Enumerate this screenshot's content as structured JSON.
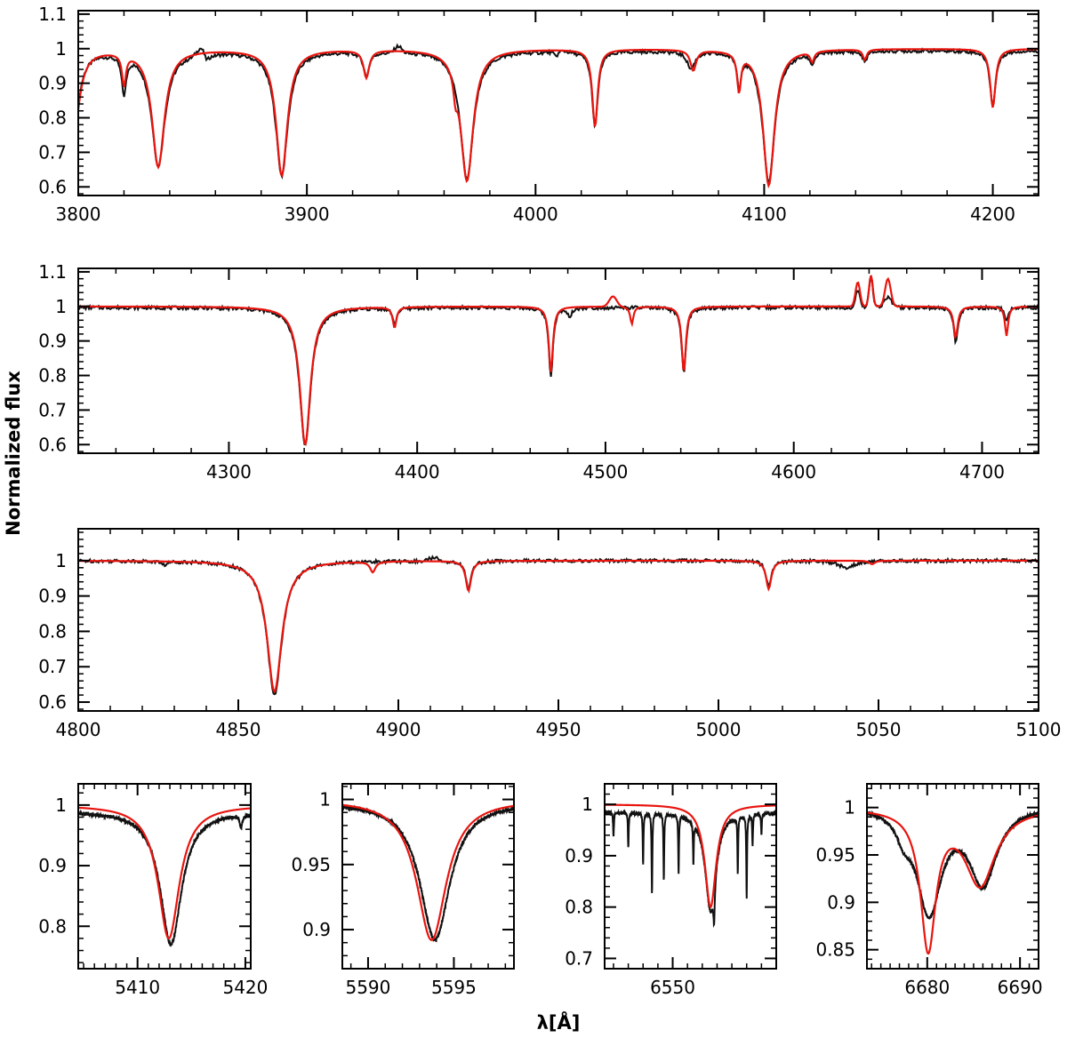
{
  "figure": {
    "ylabel": "Normalized flux",
    "xlabel": "λ[Å]"
  },
  "colors": {
    "observed": "#111111",
    "model": "#e8150f",
    "axes": "#000000"
  },
  "chart_data": [
    {
      "type": "line",
      "xlim": [
        3800,
        4220
      ],
      "ylim": [
        0.575,
        1.11
      ],
      "xticks": [
        3800,
        3900,
        4000,
        4100,
        4200
      ],
      "xtick_labels": [
        "3800",
        "3900",
        "4000",
        "4100",
        "4200"
      ],
      "yticks": [
        0.6,
        0.7,
        0.8,
        0.9,
        1,
        1.1
      ],
      "ytick_labels": [
        "0.6",
        "0.7",
        "0.8",
        "0.9",
        "1",
        "1.1"
      ],
      "xminor": 20,
      "yminor": 0.02,
      "series": [
        {
          "style": "observed",
          "continuum": 0.995,
          "lines": [
            [
              3798,
              0.22,
              3.0
            ],
            [
              3820,
              0.11,
              1.2
            ],
            [
              3835,
              0.33,
              3.5
            ],
            [
              3856,
              0.03,
              1.5
            ],
            [
              3889,
              0.36,
              3.2
            ],
            [
              3926,
              0.07,
              1.5
            ],
            [
              3970,
              0.37,
              3.5
            ],
            [
              4009,
              0.02,
              1.5
            ],
            [
              4026,
              0.22,
              1.5
            ],
            [
              4068,
              0.05,
              2.0
            ],
            [
              4089,
              0.09,
              1.0
            ],
            [
              4102,
              0.38,
              3.2
            ],
            [
              4121,
              0.03,
              1.2
            ],
            [
              4144,
              0.03,
              1.2
            ],
            [
              4200,
              0.16,
              1.5
            ]
          ],
          "emission": [
            [
              3854,
              0.03,
              2.0
            ],
            [
              3940,
              0.02,
              1.5
            ],
            [
              4010,
              0.01,
              3.0
            ]
          ]
        },
        {
          "style": "model",
          "continuum": 1.0,
          "lines": [
            [
              3798,
              0.25,
              3.0
            ],
            [
              3820,
              0.09,
              1.0
            ],
            [
              3835,
              0.34,
              3.3
            ],
            [
              3889,
              0.365,
              3.0
            ],
            [
              3926,
              0.08,
              1.5
            ],
            [
              3965,
              0.06,
              1.0
            ],
            [
              3970,
              0.38,
              3.3
            ],
            [
              4026,
              0.225,
              1.4
            ],
            [
              4069,
              0.06,
              1.5
            ],
            [
              4089,
              0.11,
              1.0
            ],
            [
              4102,
              0.395,
              3.0
            ],
            [
              4121,
              0.03,
              1.0
            ],
            [
              4144,
              0.03,
              1.0
            ],
            [
              4200,
              0.17,
              1.4
            ]
          ],
          "emission": []
        }
      ]
    },
    {
      "type": "line",
      "xlim": [
        4220,
        4730
      ],
      "ylim": [
        0.575,
        1.11
      ],
      "xticks": [
        4300,
        4400,
        4500,
        4600,
        4700
      ],
      "xtick_labels": [
        "4300",
        "4400",
        "4500",
        "4600",
        "4700"
      ],
      "yticks": [
        0.6,
        0.7,
        0.8,
        0.9,
        1,
        1.1
      ],
      "ytick_labels": [
        "0.6",
        "0.7",
        "0.8",
        "0.9",
        "1",
        "1.1"
      ],
      "xminor": 20,
      "yminor": 0.02,
      "series": [
        {
          "style": "observed",
          "continuum": 0.997,
          "lines": [
            [
              4340.5,
              0.4,
              3.5
            ],
            [
              4388,
              0.05,
              1.2
            ],
            [
              4471,
              0.2,
              1.3
            ],
            [
              4481,
              0.03,
              1.0
            ],
            [
              4541.6,
              0.19,
              1.4
            ],
            [
              4686,
              0.1,
              1.3
            ],
            [
              4713,
              0.04,
              1.0
            ]
          ],
          "emission": [
            [
              4634,
              0.05,
              1.2
            ],
            [
              4641,
              0.09,
              1.0
            ],
            [
              4650,
              0.03,
              2.0
            ]
          ]
        },
        {
          "style": "model",
          "continuum": 1.0,
          "lines": [
            [
              4340.5,
              0.4,
              3.4
            ],
            [
              4388,
              0.06,
              1.2
            ],
            [
              4471,
              0.19,
              1.3
            ],
            [
              4514,
              0.05,
              1.0
            ],
            [
              4541.6,
              0.19,
              1.3
            ],
            [
              4686,
              0.09,
              1.3
            ],
            [
              4713,
              0.085,
              1.0
            ]
          ],
          "emission": [
            [
              4634,
              0.07,
              1.2
            ],
            [
              4641,
              0.09,
              1.0
            ],
            [
              4650,
              0.08,
              1.5
            ],
            [
              4504,
              0.03,
              2.0
            ]
          ]
        }
      ]
    },
    {
      "type": "line",
      "xlim": [
        4800,
        5100
      ],
      "ylim": [
        0.575,
        1.09
      ],
      "xticks": [
        4800,
        4850,
        4900,
        4950,
        5000,
        5050,
        5100
      ],
      "xtick_labels": [
        "4800",
        "4850",
        "4900",
        "4950",
        "5000",
        "5050",
        "5100"
      ],
      "yticks": [
        0.6,
        0.7,
        0.8,
        0.9,
        1
      ],
      "ytick_labels": [
        "0.6",
        "0.7",
        "0.8",
        "0.9",
        "1"
      ],
      "xminor": 10,
      "yminor": 0.02,
      "series": [
        {
          "style": "observed",
          "continuum": 1.0,
          "lines": [
            [
              4861.3,
              0.38,
              2.8
            ],
            [
              4921.9,
              0.08,
              1.0
            ],
            [
              5015.7,
              0.07,
              1.0
            ],
            [
              5040,
              0.02,
              3.0
            ],
            [
              4827,
              0.01,
              1.0
            ]
          ],
          "emission": [
            [
              4911,
              0.01,
              1.5
            ]
          ]
        },
        {
          "style": "model",
          "continuum": 1.0,
          "lines": [
            [
              4861.3,
              0.37,
              2.8
            ],
            [
              4892,
              0.03,
              1.0
            ],
            [
              4921.9,
              0.085,
              1.0
            ],
            [
              5015.7,
              0.08,
              1.0
            ],
            [
              5048,
              0.01,
              1.0
            ]
          ],
          "emission": []
        }
      ]
    },
    {
      "type": "line",
      "xlim": [
        5404.5,
        5420.5
      ],
      "ylim": [
        0.73,
        1.035
      ],
      "xticks": [
        5410,
        5420
      ],
      "xtick_labels": [
        "5410",
        "5420"
      ],
      "yticks": [
        0.8,
        0.9,
        1
      ],
      "ytick_labels": [
        "0.8",
        "0.9",
        "1"
      ],
      "xminor": 1,
      "yminor": 0.02,
      "series": [
        {
          "style": "observed",
          "continuum": 0.99,
          "lines": [
            [
              5413.1,
              0.22,
              1.2
            ],
            [
              5419.6,
              0.02,
              0.15
            ]
          ],
          "emission": []
        },
        {
          "style": "model",
          "continuum": 1.0,
          "lines": [
            [
              5412.9,
              0.22,
              1.2
            ]
          ],
          "emission": []
        }
      ]
    },
    {
      "type": "line",
      "xlim": [
        5588.5,
        5598.5
      ],
      "ylim": [
        0.87,
        1.012
      ],
      "xticks": [
        5590,
        5595
      ],
      "xtick_labels": [
        "5590",
        "5595"
      ],
      "yticks": [
        0.9,
        0.95,
        1
      ],
      "ytick_labels": [
        "0.9",
        "0.95",
        "1"
      ],
      "xminor": 1,
      "yminor": 0.01,
      "series": [
        {
          "style": "observed",
          "continuum": 0.998,
          "lines": [
            [
              5593.9,
              0.106,
              1.05
            ]
          ],
          "emission": []
        },
        {
          "style": "model",
          "continuum": 1.0,
          "lines": [
            [
              5593.7,
              0.108,
              1.05
            ]
          ],
          "emission": []
        }
      ]
    },
    {
      "type": "line",
      "xlim": [
        6527,
        6585
      ],
      "ylim": [
        0.68,
        1.04
      ],
      "xticks": [
        6550
      ],
      "xtick_labels": [
        "6550"
      ],
      "yticks": [
        0.7,
        0.8,
        0.9,
        1
      ],
      "ytick_labels": [
        "0.7",
        "0.8",
        "0.9",
        "1"
      ],
      "xminor": 5,
      "yminor": 0.02,
      "series": [
        {
          "style": "observed",
          "continuum": 0.985,
          "lines": [
            [
              6562.8,
              0.19,
              2.2
            ],
            [
              6564,
              0.07,
              0.3
            ],
            [
              6530,
              0.05,
              0.15
            ],
            [
              6535,
              0.07,
              0.15
            ],
            [
              6540,
              0.1,
              0.15
            ],
            [
              6543,
              0.16,
              0.15
            ],
            [
              6547,
              0.13,
              0.15
            ],
            [
              6552,
              0.11,
              0.15
            ],
            [
              6557,
              0.08,
              0.15
            ],
            [
              6572,
              0.11,
              0.15
            ],
            [
              6575,
              0.16,
              0.15
            ],
            [
              6577,
              0.06,
              0.15
            ],
            [
              6580,
              0.04,
              0.15
            ]
          ],
          "emission": []
        },
        {
          "style": "model",
          "continuum": 1.0,
          "lines": [
            [
              6562.8,
              0.2,
              2.3
            ]
          ],
          "emission": []
        }
      ]
    },
    {
      "type": "line",
      "xlim": [
        6673.5,
        6692
      ],
      "ylim": [
        0.83,
        1.025
      ],
      "xticks": [
        6680,
        6690
      ],
      "xtick_labels": [
        "6680",
        "6690"
      ],
      "yticks": [
        0.85,
        0.9,
        0.95,
        1
      ],
      "ytick_labels": [
        "0.85",
        "0.9",
        "0.95",
        "1"
      ],
      "xminor": 1,
      "yminor": 0.01,
      "series": [
        {
          "style": "observed",
          "continuum": 1.003,
          "lines": [
            [
              6680.2,
              0.11,
              1.6
            ],
            [
              6686,
              0.08,
              1.8
            ],
            [
              6677.5,
              0.02,
              1.0
            ]
          ],
          "emission": []
        },
        {
          "style": "model",
          "continuum": 1.0,
          "lines": [
            [
              6680.1,
              0.145,
              1.0
            ],
            [
              6685.7,
              0.08,
              2.0
            ]
          ],
          "emission": []
        }
      ]
    }
  ]
}
